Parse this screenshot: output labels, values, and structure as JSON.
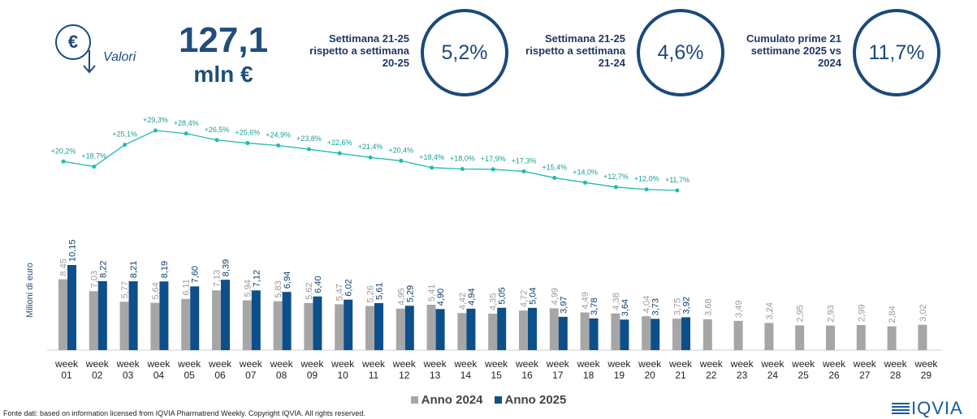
{
  "header": {
    "icon_symbol": "€",
    "label": "Valori",
    "total": "127,1",
    "unit": "mln €",
    "kpis": [
      {
        "text": "Settimana 21-25 rispetto a settimana 20-25",
        "value": "5,2%"
      },
      {
        "text": "Settimana 21-25 rispetto a settimana 21-24",
        "value": "4,6%"
      },
      {
        "text": "Cumulato prime 21 settimane 2025 vs 2024",
        "value": "11,7%"
      }
    ]
  },
  "chart_data": {
    "type": "bar",
    "ylabel": "Milioni di euro",
    "legend": "bottom",
    "categories": [
      "week 01",
      "week 02",
      "week 03",
      "week 04",
      "week 05",
      "week 06",
      "week 07",
      "week 08",
      "week 09",
      "week 10",
      "week 11",
      "week 12",
      "week 13",
      "week 14",
      "week 15",
      "week 16",
      "week 17",
      "week 18",
      "week 19",
      "week 20",
      "week 21",
      "week 22",
      "week 23",
      "week 24",
      "week 25",
      "week 26",
      "week 27",
      "week 28",
      "week 29"
    ],
    "series": [
      {
        "name": "Anno 2024",
        "color": "#a6a6a6",
        "values": [
          8.45,
          7.03,
          5.77,
          5.64,
          6.11,
          7.13,
          5.94,
          5.83,
          5.62,
          5.47,
          5.26,
          4.95,
          5.41,
          4.42,
          4.35,
          4.72,
          4.99,
          4.49,
          4.38,
          4.04,
          3.75,
          3.68,
          3.49,
          3.24,
          2.95,
          2.93,
          2.99,
          2.84,
          3.02
        ],
        "value_labels": [
          "8,45",
          "7,03",
          "5,77",
          "5,64",
          "6,11",
          "7,13",
          "5,94",
          "5,83",
          "5,62",
          "5,47",
          "5,26",
          "4,95",
          "5,41",
          "4,42",
          "4,35",
          "4,72",
          "4,99",
          "4,49",
          "4,38",
          "4,04",
          "3,75",
          "3,68",
          "3,49",
          "3,24",
          "2,95",
          "2,93",
          "2,99",
          "2,84",
          "3,02"
        ]
      },
      {
        "name": "Anno 2025",
        "color": "#0d4f8b",
        "values": [
          10.15,
          8.22,
          8.21,
          8.19,
          7.6,
          8.39,
          7.12,
          6.94,
          6.4,
          6.02,
          5.61,
          5.29,
          4.9,
          4.94,
          5.05,
          5.04,
          3.97,
          3.78,
          3.64,
          3.73,
          3.92,
          null,
          null,
          null,
          null,
          null,
          null,
          null,
          null
        ],
        "value_labels": [
          "10,15",
          "8,22",
          "8,21",
          "8,19",
          "7,60",
          "8,39",
          "7,12",
          "6,94",
          "6,40",
          "6,02",
          "5,61",
          "5,29",
          "4,90",
          "4,94",
          "5,05",
          "5,04",
          "3,97",
          "3,78",
          "3,64",
          "3,73",
          "3,92",
          null,
          null,
          null,
          null,
          null,
          null,
          null,
          null
        ]
      }
    ],
    "growth_line": {
      "type": "line",
      "color": "#1fbcae",
      "values": [
        20.2,
        18.7,
        25.1,
        29.3,
        28.4,
        26.5,
        25.6,
        24.9,
        23.8,
        22.6,
        21.4,
        20.4,
        18.4,
        18.0,
        17.9,
        17.3,
        15.4,
        14.0,
        12.7,
        12.0,
        11.7
      ],
      "value_labels": [
        "+20,2%",
        "+18,7%",
        "+25,1%",
        "+29,3%",
        "+28,4%",
        "+26,5%",
        "+25,6%",
        "+24,9%",
        "+23,8%",
        "+22,6%",
        "+21,4%",
        "+20,4%",
        "+18,4%",
        "+18,0%",
        "+17,9%",
        "+17,3%",
        "+15,4%",
        "+14,0%",
        "+12,7%",
        "+12,0%",
        "+11,7%"
      ]
    }
  },
  "footer": {
    "source": "Fonte dati: based on information licensed from IQVIA Pharmatrend Weekly. Copyright IQVIA. All rights reserved.",
    "logo": "IQVIA"
  }
}
